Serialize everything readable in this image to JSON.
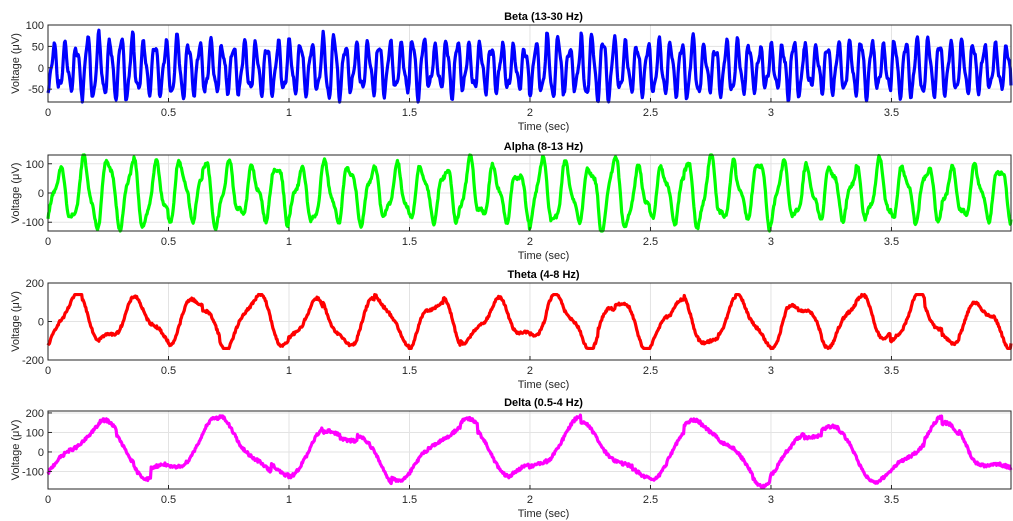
{
  "chart_data": [
    {
      "type": "line",
      "title": "Beta (13-30 Hz)",
      "xlabel": "Time (sec)",
      "ylabel": "Voltage (μV)",
      "xlim": [
        0,
        3.996
      ],
      "ylim": [
        -80,
        100
      ],
      "xticks": [
        0,
        0.5,
        1,
        1.5,
        2,
        2.5,
        3,
        3.5
      ],
      "xtick_labels": [
        "0",
        "0.5",
        "1",
        "1.5",
        "2",
        "2.5",
        "3",
        "3.5"
      ],
      "yticks": [
        100,
        50,
        0,
        -50
      ],
      "ytick_labels": [
        "100",
        "50",
        "0",
        "-50"
      ],
      "grid": true,
      "series": [
        {
          "color": "#0000ff",
          "signal": {
            "freq_hz": 21.5,
            "amplitude": 60,
            "min": -80,
            "max": 100
          }
        }
      ]
    },
    {
      "type": "line",
      "title": "Alpha (8-13 Hz)",
      "xlabel": "Time (sec)",
      "ylabel": "Voltage (μV)",
      "xlim": [
        0,
        3.996
      ],
      "ylim": [
        -130,
        130
      ],
      "xticks": [
        0,
        0.5,
        1,
        1.5,
        2,
        2.5,
        3,
        3.5
      ],
      "xtick_labels": [
        "0",
        "0.5",
        "1",
        "1.5",
        "2",
        "2.5",
        "3",
        "3.5"
      ],
      "yticks": [
        100,
        0,
        -100
      ],
      "ytick_labels": [
        "100",
        "0",
        "-100"
      ],
      "grid": true,
      "series": [
        {
          "color": "#00ff00",
          "signal": {
            "freq_hz": 10,
            "amplitude": 100,
            "min": -130,
            "max": 130
          }
        }
      ]
    },
    {
      "type": "line",
      "title": "Theta (4-8 Hz)",
      "xlabel": "Time (sec)",
      "ylabel": "Voltage (μV)",
      "xlim": [
        0,
        3.996
      ],
      "ylim": [
        -200,
        200
      ],
      "xticks": [
        0,
        0.5,
        1,
        1.5,
        2,
        2.5,
        3,
        3.5
      ],
      "xtick_labels": [
        "0",
        "0.5",
        "1",
        "1.5",
        "2",
        "2.5",
        "3",
        "3.5"
      ],
      "yticks": [
        200,
        0,
        -200
      ],
      "ytick_labels": [
        "200",
        "0",
        "-200"
      ],
      "grid": true,
      "series": [
        {
          "color": "#ff0000",
          "signal": {
            "freq_hz": 4,
            "amplitude": 115,
            "min": -140,
            "max": 140
          }
        }
      ]
    },
    {
      "type": "line",
      "title": "Delta (0.5-4 Hz)",
      "xlabel": "Time (sec)",
      "ylabel": "Voltage (μV)",
      "xlim": [
        0,
        3.996
      ],
      "ylim": [
        -190,
        210
      ],
      "xticks": [
        0,
        0.5,
        1,
        1.5,
        2,
        2.5,
        3,
        3.5
      ],
      "xtick_labels": [
        "0",
        "0.5",
        "1",
        "1.5",
        "2",
        "2.5",
        "3",
        "3.5"
      ],
      "yticks": [
        200,
        100,
        0,
        -100
      ],
      "ytick_labels": [
        "200",
        "100",
        "0",
        "-100"
      ],
      "grid": true,
      "series": [
        {
          "color": "#ff00ff",
          "signal": {
            "freq_hz": 2,
            "amplitude": 140,
            "min": -180,
            "max": 200
          }
        }
      ]
    }
  ]
}
